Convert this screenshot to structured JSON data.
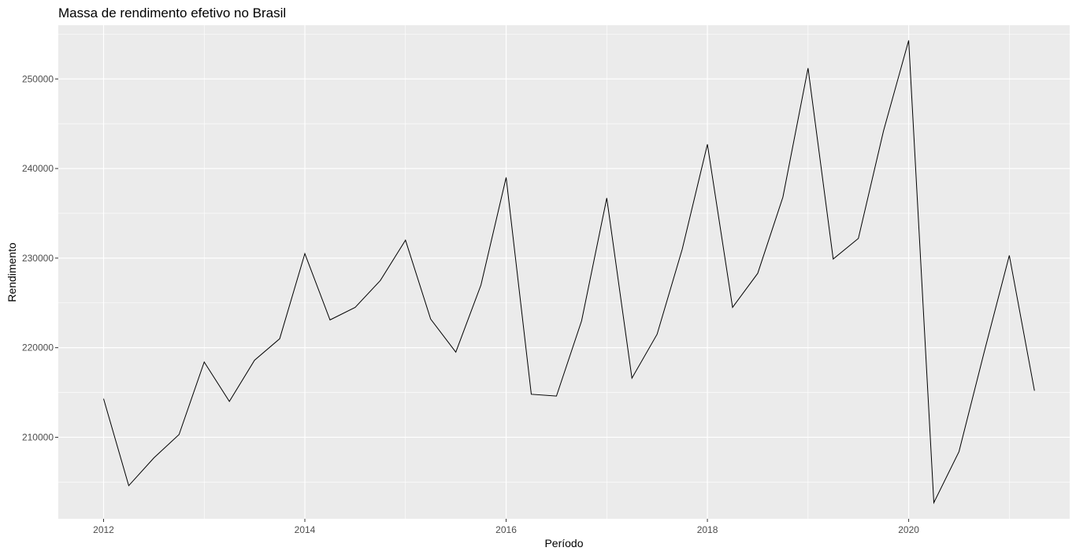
{
  "chart_data": {
    "type": "line",
    "title": "Massa de rendimento efetivo no Brasil",
    "xlabel": "Período",
    "ylabel": "Rendimento",
    "xlim": [
      2011.55,
      2021.6
    ],
    "ylim": [
      200900,
      256000
    ],
    "x_ticks": [
      2012,
      2014,
      2016,
      2018,
      2020
    ],
    "y_ticks": [
      210000,
      220000,
      230000,
      240000,
      250000
    ],
    "y_tick_labels": [
      "210000",
      "220000",
      "230000",
      "240000",
      "250000"
    ],
    "x_tick_labels": [
      "2012",
      "2014",
      "2016",
      "2018",
      "2020"
    ],
    "grid": true,
    "legend": "none",
    "background": "#ebebeb",
    "grid_color": "#ffffff",
    "line_color": "#000000",
    "series": [
      {
        "x": [
          2012.0,
          2012.25,
          2012.5,
          2012.75,
          2013.0,
          2013.25,
          2013.5,
          2013.75,
          2014.0,
          2014.25,
          2014.5,
          2014.75,
          2015.0,
          2015.25,
          2015.5,
          2015.75,
          2016.0,
          2016.25,
          2016.5,
          2016.75,
          2017.0,
          2017.25,
          2017.5,
          2017.75,
          2018.0,
          2018.25,
          2018.5,
          2018.75,
          2019.0,
          2019.25,
          2019.5,
          2019.75,
          2020.0,
          2020.25,
          2020.5,
          2020.75,
          2021.0,
          2021.25
        ],
        "values": [
          214300,
          204600,
          207700,
          210300,
          218400,
          214000,
          218600,
          221000,
          230500,
          223100,
          224500,
          227500,
          232000,
          223200,
          219500,
          227000,
          239000,
          214800,
          214600,
          223000,
          236700,
          216600,
          221500,
          231000,
          242700,
          224500,
          228300,
          236800,
          251200,
          229900,
          232200,
          244200,
          254300,
          202700,
          208400,
          219500,
          230300,
          215200
        ]
      }
    ]
  }
}
